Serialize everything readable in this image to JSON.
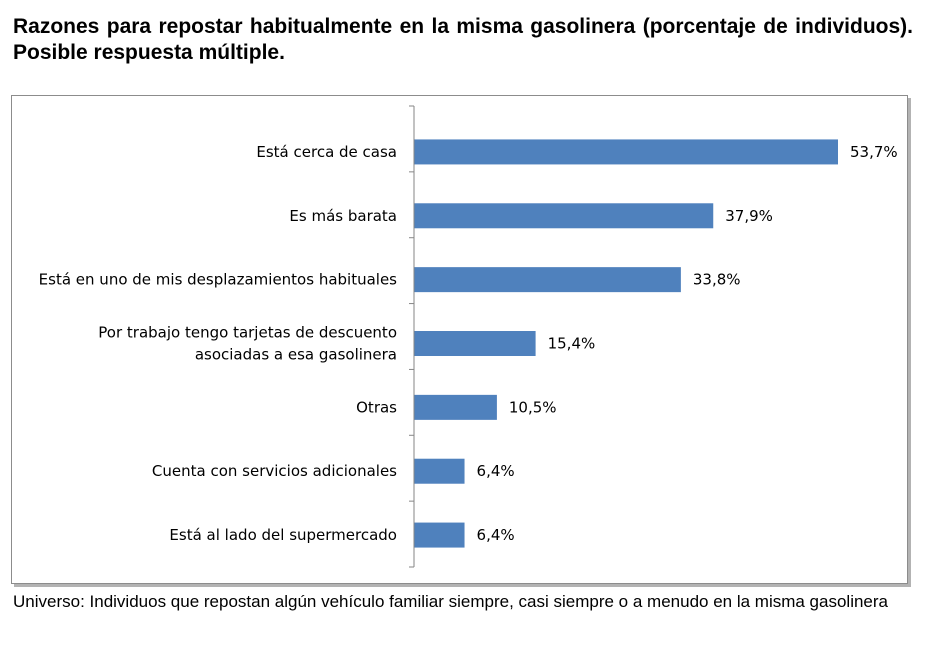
{
  "title": "Razones para repostar habitualmente en la misma gasolinera (porcentaje de individuos). Posible respuesta múltiple.",
  "footnote": "Universo: Individuos que repostan algún vehículo familiar siempre, casi siempre o a menudo en la misma gasolinera",
  "chart_data": {
    "type": "bar",
    "orientation": "horizontal",
    "categories": [
      [
        "Está cerca de casa"
      ],
      [
        "Es más barata"
      ],
      [
        "Está en uno de mis desplazamientos habituales"
      ],
      [
        "Por trabajo tengo tarjetas de descuento",
        "asociadas a esa gasolinera"
      ],
      [
        "Otras"
      ],
      [
        "Cuenta con servicios adicionales"
      ],
      [
        "Está al lado del supermercado"
      ]
    ],
    "values": [
      53.7,
      37.9,
      33.8,
      15.4,
      10.5,
      6.4,
      6.4
    ],
    "value_labels": [
      "53,7%",
      "37,9%",
      "33,8%",
      "15,4%",
      "10,5%",
      "6,4%",
      "6,4%"
    ],
    "xlim": [
      0,
      53.7
    ],
    "bar_color": "#4f81bd",
    "grid": false,
    "legend": "none"
  }
}
